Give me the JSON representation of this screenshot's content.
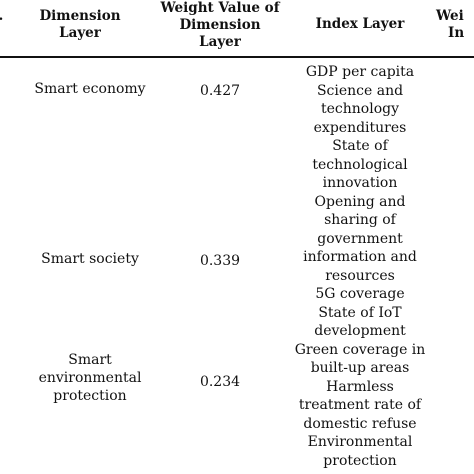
{
  "header": {
    "prefix": ".",
    "dimension_layer": [
      "Dimension",
      "Layer"
    ],
    "weight_dimension": [
      "Weight Value of",
      "Dimension",
      "Layer"
    ],
    "index_layer": "Index Layer",
    "weight_index": [
      "Wei",
      "In"
    ]
  },
  "rows": [
    {
      "dimension": [
        "Smart economy"
      ],
      "weight": "0.427"
    },
    {
      "dimension": [
        "Smart society"
      ],
      "weight": "0.339"
    },
    {
      "dimension": [
        "Smart",
        "environmental",
        "protection"
      ],
      "weight": "0.234"
    }
  ],
  "index_lines": [
    "GDP per capita",
    "Science and",
    "technology",
    "expenditures",
    "State of",
    "technological",
    "innovation",
    "Opening and",
    "sharing of",
    "government",
    "information and",
    "resources",
    "5G coverage",
    "State of IoT",
    "development",
    "Green coverage in",
    "built-up areas",
    "Harmless",
    "treatment rate of",
    "domestic refuse",
    "Environmental",
    "protection"
  ]
}
